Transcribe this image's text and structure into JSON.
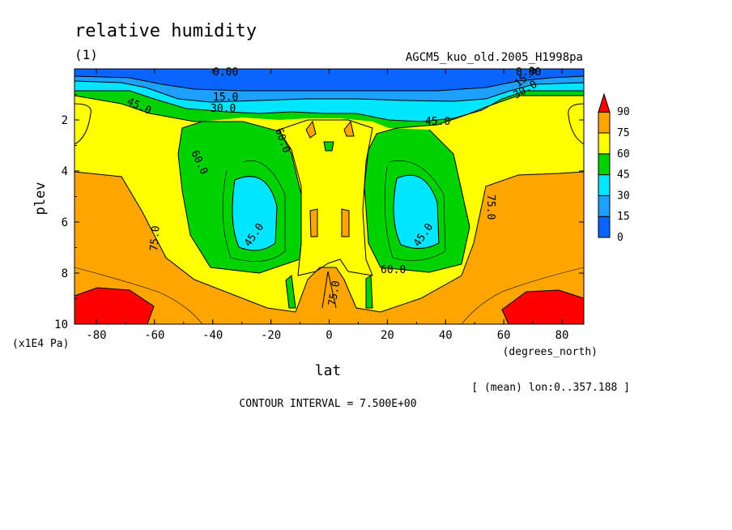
{
  "chart_data": {
    "type": "contour",
    "title": "relative humidity",
    "panel_label": "(1)",
    "dataset": "AGCM5_kuo_old.2005_H1998pa",
    "xlabel": "lat",
    "x_units": "(degrees_north)",
    "ylabel": "plev",
    "y_units": "(x1E4 Pa)",
    "xlim": [
      -87.5,
      87.5
    ],
    "ylim": [
      0,
      10
    ],
    "y_inverted": true,
    "x_ticks": [
      "-80",
      "-60",
      "-40",
      "-20",
      "0",
      "20",
      "40",
      "60",
      "80"
    ],
    "y_ticks": [
      "2",
      "4",
      "6",
      "8",
      "10"
    ],
    "averaging_note": "[ (mean) lon:0..357.188 ]",
    "contour_interval_text": "CONTOUR INTERVAL = 7.500E+00",
    "colorbar": {
      "levels": [
        0,
        15,
        30,
        45,
        60,
        75,
        90
      ],
      "labels": [
        "0",
        "15",
        "30",
        "45",
        "60",
        "75",
        "90"
      ],
      "colors": [
        "#0a64ff",
        "#1ea0ff",
        "#00e6ff",
        "#00d200",
        "#ffff00",
        "#ffa500",
        "#ff0000"
      ]
    },
    "contour_labels": [
      "0.00",
      "0.00",
      "15.0",
      "15.0",
      "30.0",
      "30.0",
      "45.0",
      "45.0",
      "45.0",
      "45.0",
      "60.0",
      "60.0",
      "60.0",
      "75.0",
      "75.0",
      "75.0"
    ],
    "fields": {
      "upper_dry_layer_relative_humidity": [
        0,
        45
      ],
      "midlatitude_upper_troposphere_minimum": 30,
      "lower_troposphere_high_latitude_maximum": 90
    }
  }
}
